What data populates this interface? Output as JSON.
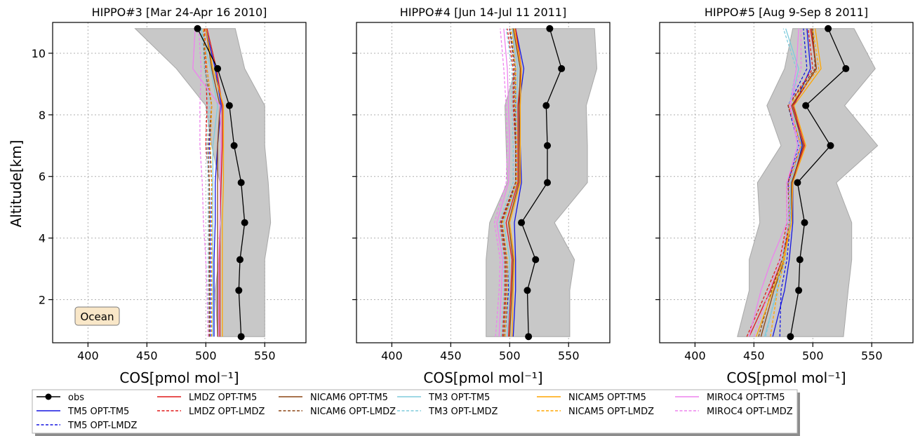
{
  "chart_data": {
    "type": "line",
    "ylabel": "Altitude[km]",
    "shared_y": true,
    "ylim": [
      0.6,
      11.0
    ],
    "yticks": [
      2,
      4,
      6,
      8,
      10
    ],
    "xlim": [
      370,
      585
    ],
    "xticks": [
      400,
      450,
      500,
      550
    ],
    "grid": true,
    "legend_position": "bottom",
    "panels": [
      {
        "title": "HIPPO#3 [Mar 24-Apr 16 2010]",
        "xlabel": "COS[pmol mol⁻¹]",
        "annotation": "Ocean",
        "altitudes": [
          0.8,
          2.3,
          3.3,
          4.5,
          5.8,
          7.0,
          8.3,
          9.5,
          10.8
        ],
        "obs_values": [
          530,
          528,
          529,
          533,
          530,
          524,
          520,
          510,
          493
        ],
        "band_low": [
          510,
          508,
          511,
          513,
          512,
          505,
          500,
          475,
          440
        ],
        "band_high": [
          550,
          550,
          550,
          555,
          553,
          550,
          550,
          533,
          525
        ],
        "models": {
          "TM5 OPT-TM5": [
            507,
            507,
            507,
            508,
            508,
            510,
            513,
            508,
            500
          ],
          "TM5 OPT-LMDZ": [
            504,
            504,
            504,
            504,
            505,
            503,
            505,
            501,
            498
          ],
          "LMDZ OPT-TM5": [
            512,
            512,
            512,
            512,
            513,
            514,
            514,
            509,
            501
          ],
          "LMDZ OPT-LMDZ": [
            503,
            503,
            503,
            503,
            503,
            500,
            501,
            500,
            499
          ],
          "NICAM6 OPT-TM5": [
            510,
            510,
            510,
            510,
            510,
            510,
            512,
            505,
            500
          ],
          "NICAM6 OPT-LMDZ": [
            503,
            503,
            503,
            503,
            503,
            502,
            505,
            499,
            498
          ],
          "TM3 OPT-TM5": [
            506,
            506,
            506,
            506,
            506,
            506,
            510,
            504,
            496
          ],
          "TM3 OPT-LMDZ": [
            502,
            502,
            502,
            502,
            502,
            501,
            503,
            499,
            496
          ],
          "NICAM5 OPT-TM5": [
            514,
            514,
            514,
            514,
            515,
            515,
            515,
            506,
            500
          ],
          "NICAM5 OPT-LMDZ": [
            505,
            505,
            505,
            505,
            505,
            504,
            505,
            501,
            498
          ],
          "MIROC4 OPT-TM5": [
            511,
            511,
            511,
            512,
            512,
            513,
            512,
            489,
            491
          ],
          "MIROC4 OPT-LMDZ": [
            502,
            501,
            500,
            498,
            497,
            495,
            495,
            496,
            494
          ]
        }
      },
      {
        "title": "HIPPO#4 [Jun 14-Jul 11 2011]",
        "xlabel": "COS[pmol mol⁻¹]",
        "altitudes": [
          0.8,
          2.3,
          3.3,
          4.5,
          5.8,
          7.0,
          8.3,
          9.5,
          10.8
        ],
        "obs_values": [
          516,
          515,
          522,
          510,
          532,
          532,
          531,
          544,
          534
        ],
        "band_low": [
          480,
          480,
          480,
          483,
          498,
          497,
          496,
          505,
          502
        ],
        "band_high": [
          551,
          551,
          555,
          538,
          566,
          566,
          565,
          574,
          572
        ],
        "models": {
          "TM5 OPT-TM5": [
            503,
            505,
            505,
            504,
            510,
            509,
            508,
            512,
            505
          ],
          "TM5 OPT-LMDZ": [
            496,
            499,
            498,
            493,
            506,
            505,
            505,
            505,
            500
          ],
          "LMDZ OPT-TM5": [
            499,
            501,
            502,
            497,
            507,
            507,
            507,
            510,
            505
          ],
          "LMDZ OPT-LMDZ": [
            494,
            496,
            496,
            492,
            505,
            505,
            503,
            503,
            498
          ],
          "NICAM6 OPT-TM5": [
            500,
            502,
            503,
            499,
            508,
            508,
            508,
            509,
            503
          ],
          "NICAM6 OPT-LMDZ": [
            495,
            497,
            497,
            493,
            505,
            505,
            504,
            504,
            500
          ],
          "TM3 OPT-TM5": [
            498,
            500,
            500,
            495,
            506,
            506,
            506,
            507,
            502
          ],
          "TM3 OPT-LMDZ": [
            493,
            495,
            495,
            491,
            503,
            503,
            502,
            502,
            497
          ],
          "NICAM5 OPT-TM5": [
            502,
            503,
            504,
            500,
            509,
            509,
            509,
            510,
            504
          ],
          "NICAM5 OPT-LMDZ": [
            496,
            498,
            498,
            494,
            506,
            506,
            505,
            505,
            501
          ],
          "MIROC4 OPT-TM5": [
            491,
            493,
            494,
            489,
            499,
            500,
            499,
            498,
            495
          ],
          "MIROC4 OPT-LMDZ": [
            488,
            491,
            492,
            487,
            497,
            498,
            497,
            495,
            492
          ]
        }
      },
      {
        "title": "HIPPO#5 [Aug 9-Sep 8 2011]",
        "xlabel": "COS[pmol mol⁻¹]",
        "altitudes": [
          0.8,
          2.3,
          3.3,
          4.5,
          5.8,
          7.0,
          8.3,
          9.5,
          10.8
        ],
        "obs_values": [
          481,
          488,
          489,
          493,
          487,
          515,
          494,
          528,
          513
        ],
        "band_low": [
          436,
          446,
          446,
          455,
          453,
          473,
          461,
          476,
          483
        ],
        "band_high": [
          526,
          530,
          533,
          533,
          520,
          555,
          527,
          553,
          535
        ],
        "models": {
          "TM5 OPT-TM5": [
            466,
            476,
            480,
            483,
            483,
            491,
            484,
            498,
            495
          ],
          "TM5 OPT-LMDZ": [
            472,
            473,
            478,
            481,
            479,
            488,
            479,
            495,
            492
          ],
          "LMDZ OPT-TM5": [
            446,
            464,
            474,
            481,
            482,
            493,
            483,
            503,
            498
          ],
          "LMDZ OPT-LMDZ": [
            444,
            461,
            472,
            478,
            478,
            490,
            479,
            500,
            496
          ],
          "NICAM6 OPT-TM5": [
            456,
            467,
            476,
            481,
            482,
            492,
            482,
            503,
            499
          ],
          "NICAM6 OPT-LMDZ": [
            454,
            465,
            474,
            480,
            479,
            490,
            479,
            502,
            500
          ],
          "TM3 OPT-TM5": [
            459,
            470,
            476,
            481,
            481,
            490,
            481,
            488,
            477
          ],
          "TM3 OPT-LMDZ": [
            460,
            469,
            474,
            479,
            480,
            488,
            480,
            486,
            475
          ],
          "NICAM5 OPT-TM5": [
            452,
            466,
            475,
            482,
            483,
            494,
            484,
            507,
            502
          ],
          "NICAM5 OPT-LMDZ": [
            464,
            470,
            476,
            480,
            480,
            490,
            480,
            505,
            500
          ],
          "MIROC4 OPT-TM5": [
            446,
            456,
            465,
            478,
            478,
            487,
            481,
            486,
            488
          ],
          "MIROC4 OPT-LMDZ": [
            450,
            463,
            472,
            480,
            480,
            489,
            480,
            490,
            490
          ]
        }
      }
    ],
    "series": [
      {
        "name": "obs",
        "color": "#000000",
        "style": "solid-marker"
      },
      {
        "name": "TM5 OPT-TM5",
        "color": "#1515e0",
        "style": "solid"
      },
      {
        "name": "TM5 OPT-LMDZ",
        "color": "#1515e0",
        "style": "dashed"
      },
      {
        "name": "LMDZ OPT-TM5",
        "color": "#e01a1a",
        "style": "solid"
      },
      {
        "name": "LMDZ OPT-LMDZ",
        "color": "#e01a1a",
        "style": "dashed"
      },
      {
        "name": "NICAM6 OPT-TM5",
        "color": "#8b4513",
        "style": "solid"
      },
      {
        "name": "NICAM6 OPT-LMDZ",
        "color": "#8b4513",
        "style": "dashed"
      },
      {
        "name": "TM3 OPT-TM5",
        "color": "#7ecbdc",
        "style": "solid"
      },
      {
        "name": "TM3 OPT-LMDZ",
        "color": "#7ecbdc",
        "style": "dashed"
      },
      {
        "name": "NICAM5 OPT-TM5",
        "color": "#ffa500",
        "style": "solid"
      },
      {
        "name": "NICAM5 OPT-LMDZ",
        "color": "#ffa500",
        "style": "dashed"
      },
      {
        "name": "MIROC4 OPT-TM5",
        "color": "#ee82ee",
        "style": "solid"
      },
      {
        "name": "MIROC4 OPT-LMDZ",
        "color": "#ee82ee",
        "style": "dashed"
      }
    ],
    "band_color": "#c8c8c8"
  }
}
